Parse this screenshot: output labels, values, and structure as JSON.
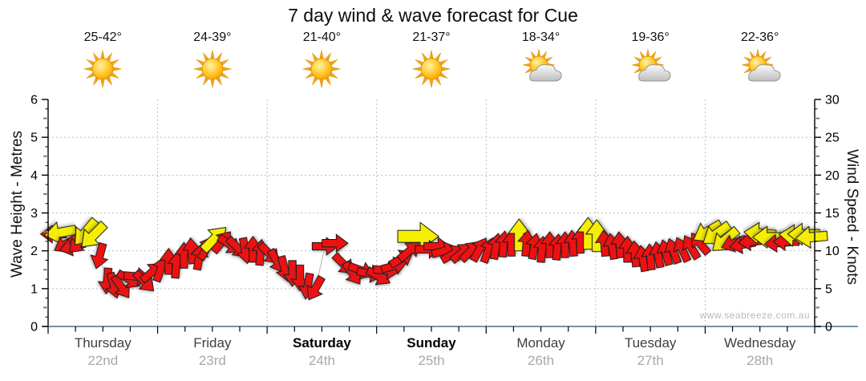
{
  "title": "7 day wind & wave forecast for Cue",
  "watermark": "www.seabreeze.com.au",
  "axes": {
    "left_label": "Wave Height - Metres",
    "right_label": "Wind Speed - Knots",
    "left_ticks": [
      0,
      1,
      2,
      3,
      4,
      5,
      6
    ],
    "right_ticks": [
      0,
      5,
      10,
      15,
      20,
      25,
      30
    ]
  },
  "days": [
    {
      "name": "Thursday",
      "date": "22nd",
      "temp": "25-42°",
      "icon": "sunny",
      "weekend": false
    },
    {
      "name": "Friday",
      "date": "23rd",
      "temp": "24-39°",
      "icon": "sunny",
      "weekend": false
    },
    {
      "name": "Saturday",
      "date": "24th",
      "temp": "21-40°",
      "icon": "sunny",
      "weekend": true
    },
    {
      "name": "Sunday",
      "date": "25th",
      "temp": "21-37°",
      "icon": "sunny",
      "weekend": true
    },
    {
      "name": "Monday",
      "date": "26th",
      "temp": "18-34°",
      "icon": "partly-cloudy",
      "weekend": false
    },
    {
      "name": "Tuesday",
      "date": "27th",
      "temp": "19-36°",
      "icon": "partly-cloudy",
      "weekend": false
    },
    {
      "name": "Wednesday",
      "date": "28th",
      "temp": "22-36°",
      "icon": "partly-cloudy",
      "weekend": false
    }
  ],
  "chart_data": {
    "type": "wind-arrow-timeseries",
    "title": "7 day wind & wave forecast for Cue",
    "left_axis": {
      "label": "Wave Height - Metres",
      "min": 0,
      "max": 6,
      "major_step": 1
    },
    "right_axis": {
      "label": "Wind Speed - Knots",
      "min": 0,
      "max": 30,
      "major_step": 5
    },
    "x_axis": {
      "unit": "days",
      "min": 0,
      "max": 7,
      "day_labels": [
        "Thursday",
        "Friday",
        "Saturday",
        "Sunday",
        "Monday",
        "Tuesday",
        "Wednesday"
      ]
    },
    "grid": {
      "horizontal_dotted_at_metres": [
        1,
        2,
        3,
        4,
        5
      ],
      "vertical_dotted_at_day_boundaries": [
        1,
        2,
        3,
        4,
        5,
        6
      ]
    },
    "wave_height_series": {
      "constant_metres": 0
    },
    "arrow_colors": {
      "r": "#ee1111",
      "y": "#f5ee00",
      "outline": "#1a1a1a"
    },
    "angle_convention": "screen degrees: 0=east/right, 90=down/south, 180=left/west, 270=up/north; arrow points where wind blows toward",
    "arrows": [
      [
        0.05,
        12.2,
        180,
        "r"
      ],
      [
        0.11,
        12.4,
        170,
        "y"
      ],
      [
        0.16,
        10.9,
        150,
        "r"
      ],
      [
        0.22,
        10.5,
        165,
        "r"
      ],
      [
        0.28,
        11.0,
        135,
        "r"
      ],
      [
        0.34,
        12.4,
        130,
        "y"
      ],
      [
        0.41,
        12.0,
        135,
        "y"
      ],
      [
        0.47,
        9.3,
        105,
        "r"
      ],
      [
        0.54,
        6.0,
        95,
        "r"
      ],
      [
        0.6,
        5.4,
        75,
        "r"
      ],
      [
        0.67,
        5.2,
        55,
        "r"
      ],
      [
        0.74,
        6.2,
        30,
        "r"
      ],
      [
        0.81,
        6.6,
        5,
        "r"
      ],
      [
        0.88,
        5.9,
        45,
        "r"
      ],
      [
        0.95,
        7.2,
        320,
        "r"
      ],
      [
        1.03,
        7.6,
        290,
        "r"
      ],
      [
        1.1,
        8.6,
        270,
        "r"
      ],
      [
        1.17,
        8.1,
        275,
        "r"
      ],
      [
        1.24,
        9.4,
        270,
        "r"
      ],
      [
        1.31,
        10.0,
        265,
        "r"
      ],
      [
        1.38,
        9.2,
        280,
        "r"
      ],
      [
        1.45,
        10.4,
        300,
        "r"
      ],
      [
        1.52,
        11.6,
        315,
        "y"
      ],
      [
        1.59,
        11.2,
        310,
        "r"
      ],
      [
        1.66,
        10.8,
        35,
        "r"
      ],
      [
        1.73,
        10.4,
        45,
        "r"
      ],
      [
        1.8,
        10.0,
        80,
        "r"
      ],
      [
        1.87,
        10.2,
        270,
        "r"
      ],
      [
        1.94,
        9.8,
        275,
        "r"
      ],
      [
        2.02,
        9.6,
        45,
        "r"
      ],
      [
        2.09,
        8.6,
        60,
        "r"
      ],
      [
        2.16,
        7.6,
        75,
        "r"
      ],
      [
        2.23,
        7.0,
        90,
        "r"
      ],
      [
        2.3,
        6.4,
        90,
        "r"
      ],
      [
        2.37,
        5.3,
        100,
        "r"
      ],
      [
        2.44,
        5.0,
        120,
        "r"
      ],
      [
        2.53,
        10.6,
        0,
        "r"
      ],
      [
        2.62,
        11.0,
        0,
        "r"
      ],
      [
        2.7,
        8.2,
        45,
        "r"
      ],
      [
        2.78,
        7.0,
        55,
        "r"
      ],
      [
        2.86,
        7.4,
        20,
        "r"
      ],
      [
        2.94,
        7.0,
        10,
        "r"
      ],
      [
        3.02,
        6.6,
        30,
        "r"
      ],
      [
        3.09,
        7.4,
        5,
        "r"
      ],
      [
        3.16,
        8.0,
        345,
        "r"
      ],
      [
        3.23,
        9.0,
        330,
        "r"
      ],
      [
        3.3,
        10.0,
        320,
        "r"
      ],
      [
        3.38,
        11.9,
        0,
        "y",
        1.65
      ],
      [
        3.47,
        10.2,
        0,
        "r"
      ],
      [
        3.55,
        10.6,
        0,
        "r"
      ],
      [
        3.62,
        10.0,
        345,
        "r"
      ],
      [
        3.7,
        9.6,
        330,
        "r"
      ],
      [
        3.78,
        9.8,
        320,
        "r"
      ],
      [
        3.86,
        10.0,
        315,
        "r"
      ],
      [
        3.94,
        10.2,
        300,
        "r"
      ],
      [
        4.02,
        10.1,
        290,
        "r"
      ],
      [
        4.09,
        10.6,
        280,
        "r"
      ],
      [
        4.16,
        10.9,
        275,
        "r"
      ],
      [
        4.23,
        11.0,
        270,
        "r"
      ],
      [
        4.3,
        12.1,
        270,
        "y"
      ],
      [
        4.37,
        11.0,
        275,
        "r"
      ],
      [
        4.44,
        10.6,
        280,
        "r"
      ],
      [
        4.51,
        10.2,
        275,
        "r"
      ],
      [
        4.58,
        10.8,
        270,
        "r"
      ],
      [
        4.65,
        10.5,
        275,
        "r"
      ],
      [
        4.72,
        10.8,
        270,
        "r"
      ],
      [
        4.79,
        11.0,
        265,
        "r"
      ],
      [
        4.86,
        11.4,
        270,
        "r"
      ],
      [
        4.93,
        12.3,
        270,
        "y"
      ],
      [
        5.01,
        12.0,
        270,
        "y"
      ],
      [
        5.08,
        11.0,
        265,
        "r"
      ],
      [
        5.15,
        10.6,
        260,
        "r"
      ],
      [
        5.22,
        10.8,
        265,
        "r"
      ],
      [
        5.29,
        10.2,
        270,
        "r"
      ],
      [
        5.36,
        9.6,
        265,
        "r"
      ],
      [
        5.43,
        9.0,
        260,
        "r"
      ],
      [
        5.5,
        9.2,
        265,
        "r"
      ],
      [
        5.57,
        9.5,
        260,
        "r"
      ],
      [
        5.64,
        9.8,
        255,
        "r"
      ],
      [
        5.71,
        10.0,
        250,
        "r"
      ],
      [
        5.79,
        10.2,
        245,
        "r"
      ],
      [
        5.87,
        10.5,
        240,
        "r"
      ],
      [
        5.95,
        11.0,
        230,
        "r"
      ],
      [
        6.02,
        12.5,
        150,
        "y"
      ],
      [
        6.1,
        12.2,
        145,
        "y"
      ],
      [
        6.18,
        11.4,
        140,
        "y"
      ],
      [
        6.26,
        11.0,
        160,
        "r"
      ],
      [
        6.34,
        10.8,
        170,
        "r"
      ],
      [
        6.42,
        11.2,
        175,
        "r"
      ],
      [
        6.5,
        12.3,
        185,
        "y"
      ],
      [
        6.58,
        11.8,
        180,
        "y"
      ],
      [
        6.66,
        11.0,
        175,
        "r"
      ],
      [
        6.74,
        11.2,
        180,
        "r"
      ],
      [
        6.82,
        12.0,
        185,
        "y"
      ],
      [
        6.9,
        12.2,
        180,
        "y"
      ],
      [
        6.97,
        11.8,
        175,
        "y"
      ]
    ]
  },
  "colors": {
    "baseline_wave_trace": "#44708c",
    "axis": "#000000",
    "grid_dotted": "#bdbdbd",
    "trace_line": "#b0b0b0"
  }
}
